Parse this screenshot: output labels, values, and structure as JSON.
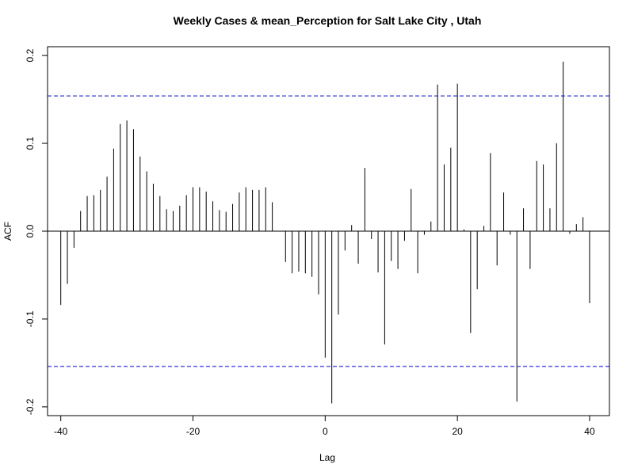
{
  "chart_data": {
    "type": "bar",
    "title": "Weekly Cases & mean_Perception for Salt Lake City , Utah",
    "xlabel": "Lag",
    "ylabel": "ACF",
    "xlim": [
      -42,
      43
    ],
    "ylim": [
      -0.21,
      0.21
    ],
    "x_ticks": [
      -40,
      -20,
      0,
      20,
      40
    ],
    "y_ticks": [
      -0.2,
      -0.1,
      0.0,
      0.1,
      0.2
    ],
    "x_tick_labels": [
      "-40",
      "-20",
      "0",
      "20",
      "40"
    ],
    "y_tick_labels": [
      "-0.2",
      "-0.1",
      "0.0",
      "0.1",
      "0.2"
    ],
    "confidence_band": [
      0.154,
      -0.154
    ],
    "confidence_color": "#0000cc",
    "bar_color": "#000000",
    "zero_line": true,
    "grid": false,
    "lags": [
      -40,
      -39,
      -38,
      -37,
      -36,
      -35,
      -34,
      -33,
      -32,
      -31,
      -30,
      -29,
      -28,
      -27,
      -26,
      -25,
      -24,
      -23,
      -22,
      -21,
      -20,
      -19,
      -18,
      -17,
      -16,
      -15,
      -14,
      -13,
      -12,
      -11,
      -10,
      -9,
      -8,
      -7,
      -6,
      -5,
      -4,
      -3,
      -2,
      -1,
      0,
      1,
      2,
      3,
      4,
      5,
      6,
      7,
      8,
      9,
      10,
      11,
      12,
      13,
      14,
      15,
      16,
      17,
      18,
      19,
      20,
      21,
      22,
      23,
      24,
      25,
      26,
      27,
      28,
      29,
      30,
      31,
      32,
      33,
      34,
      35,
      36,
      37,
      38,
      39,
      40
    ],
    "values": [
      -0.084,
      -0.06,
      -0.019,
      0.023,
      0.04,
      0.041,
      0.047,
      0.062,
      0.094,
      0.122,
      0.126,
      0.116,
      0.085,
      0.068,
      0.054,
      0.04,
      0.025,
      0.023,
      0.029,
      0.041,
      0.05,
      0.05,
      0.045,
      0.034,
      0.024,
      0.022,
      0.031,
      0.044,
      0.05,
      0.047,
      0.047,
      0.05,
      0.033,
      0.0,
      -0.035,
      -0.048,
      -0.046,
      -0.048,
      -0.052,
      -0.072,
      -0.144,
      -0.196,
      -0.095,
      -0.022,
      0.007,
      -0.037,
      0.072,
      -0.009,
      -0.047,
      -0.129,
      -0.034,
      -0.043,
      -0.011,
      0.048,
      -0.048,
      -0.004,
      0.011,
      0.167,
      0.076,
      0.095,
      0.168,
      0.002,
      -0.116,
      -0.066,
      0.006,
      0.089,
      -0.039,
      0.044,
      -0.004,
      -0.194,
      0.026,
      -0.043,
      0.08,
      0.076,
      0.026,
      0.1,
      0.193,
      -0.003,
      0.008,
      0.016,
      -0.082
    ]
  }
}
